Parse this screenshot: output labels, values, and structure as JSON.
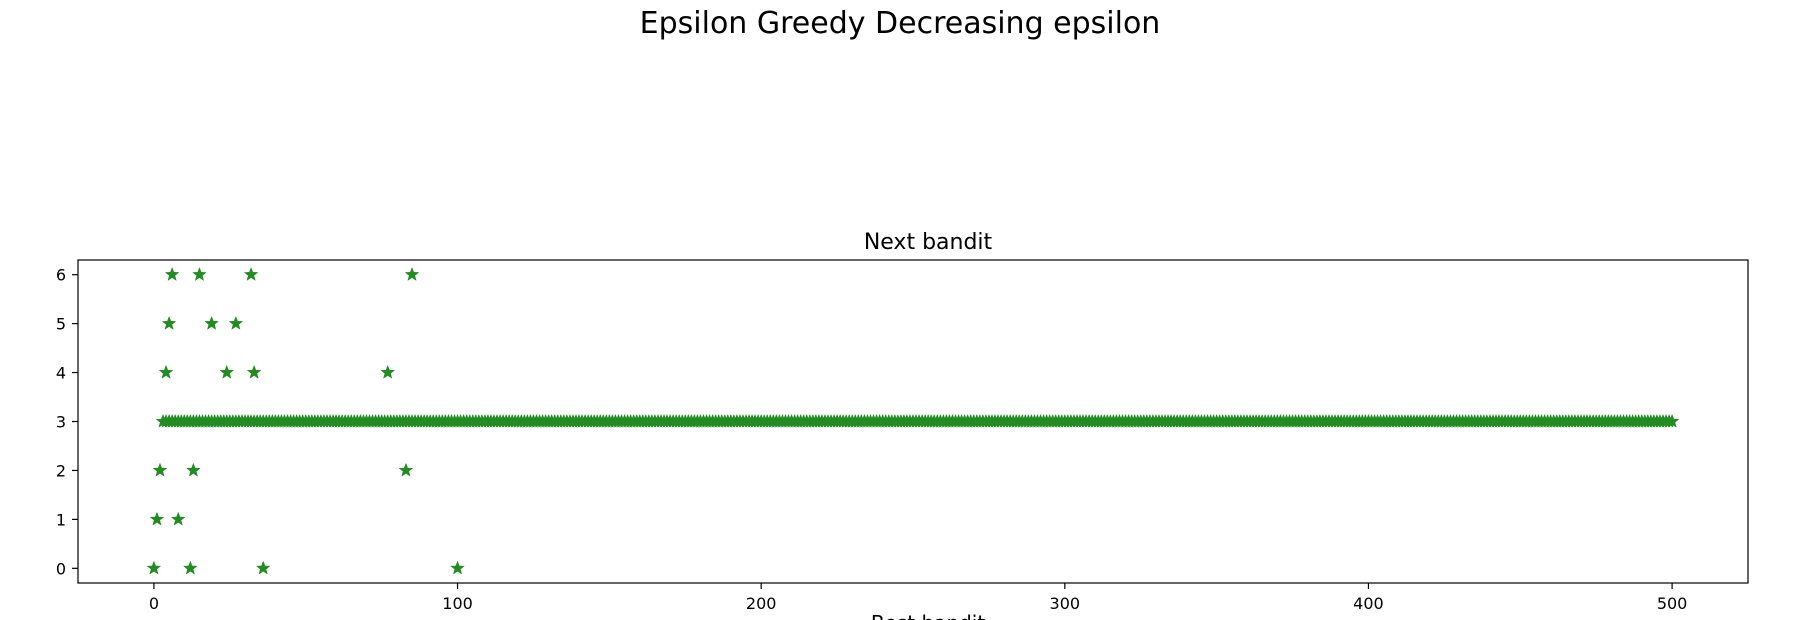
{
  "suptitle": "Epsilon Greedy Decreasing epsilon",
  "chart_data": {
    "type": "scatter",
    "title": "Next bandit",
    "xlabel": "Best bandit",
    "ylabel": "",
    "xlim": [
      -25,
      525
    ],
    "ylim": [
      -0.3,
      6.3
    ],
    "xticks": [
      0,
      100,
      200,
      300,
      400,
      500
    ],
    "yticks": [
      0,
      1,
      2,
      3,
      4,
      5,
      6
    ],
    "marker": "star",
    "color": "#228B22",
    "grid": false,
    "outliers": [
      {
        "x": 0,
        "y": 0
      },
      {
        "x": 1,
        "y": 1
      },
      {
        "x": 2,
        "y": 2
      },
      {
        "x": 4,
        "y": 4
      },
      {
        "x": 5,
        "y": 5
      },
      {
        "x": 6,
        "y": 6
      },
      {
        "x": 8,
        "y": 1
      },
      {
        "x": 12,
        "y": 0
      },
      {
        "x": 13,
        "y": 2
      },
      {
        "x": 15,
        "y": 6
      },
      {
        "x": 19,
        "y": 5
      },
      {
        "x": 24,
        "y": 4
      },
      {
        "x": 27,
        "y": 5
      },
      {
        "x": 32,
        "y": 6
      },
      {
        "x": 33,
        "y": 4
      },
      {
        "x": 36,
        "y": 0
      },
      {
        "x": 77,
        "y": 4
      },
      {
        "x": 83,
        "y": 2
      },
      {
        "x": 85,
        "y": 6
      },
      {
        "x": 100,
        "y": 0
      }
    ],
    "baseline": {
      "y": 3,
      "x_start": 3,
      "x_end": 500,
      "x_step": 1
    }
  }
}
